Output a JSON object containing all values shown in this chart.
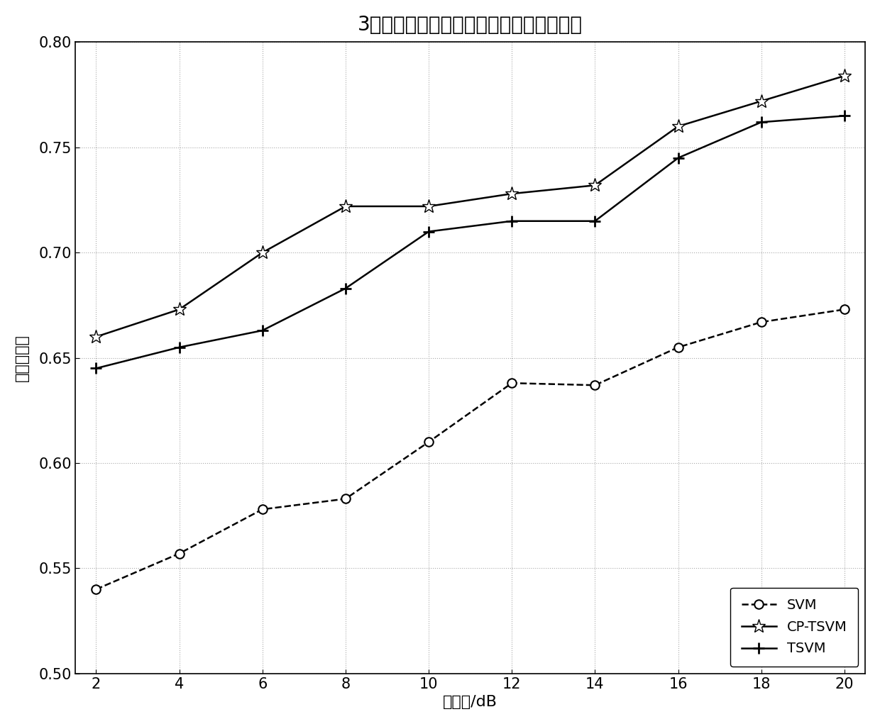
{
  "title": "3种算法下个体识别正确率随信噪比变化图",
  "xlabel": "信噪比/dB",
  "ylabel": "识别正确率",
  "x": [
    2,
    4,
    6,
    8,
    10,
    12,
    14,
    16,
    18,
    20
  ],
  "svm": [
    0.54,
    0.557,
    0.578,
    0.583,
    0.61,
    0.638,
    0.637,
    0.655,
    0.667,
    0.673
  ],
  "cp_tsvm": [
    0.66,
    0.673,
    0.7,
    0.722,
    0.722,
    0.728,
    0.732,
    0.76,
    0.772,
    0.784
  ],
  "tsvm": [
    0.645,
    0.655,
    0.663,
    0.683,
    0.71,
    0.715,
    0.715,
    0.745,
    0.762,
    0.765
  ],
  "ylim": [
    0.5,
    0.8
  ],
  "yticks": [
    0.5,
    0.55,
    0.6,
    0.65,
    0.7,
    0.75,
    0.8
  ],
  "xticks": [
    2,
    4,
    6,
    8,
    10,
    12,
    14,
    16,
    18,
    20
  ],
  "background_color": "#ffffff",
  "line_color": "#000000",
  "grid_color": "#aaaaaa",
  "title_fontsize": 20,
  "label_fontsize": 16,
  "tick_fontsize": 15,
  "legend_fontsize": 14
}
